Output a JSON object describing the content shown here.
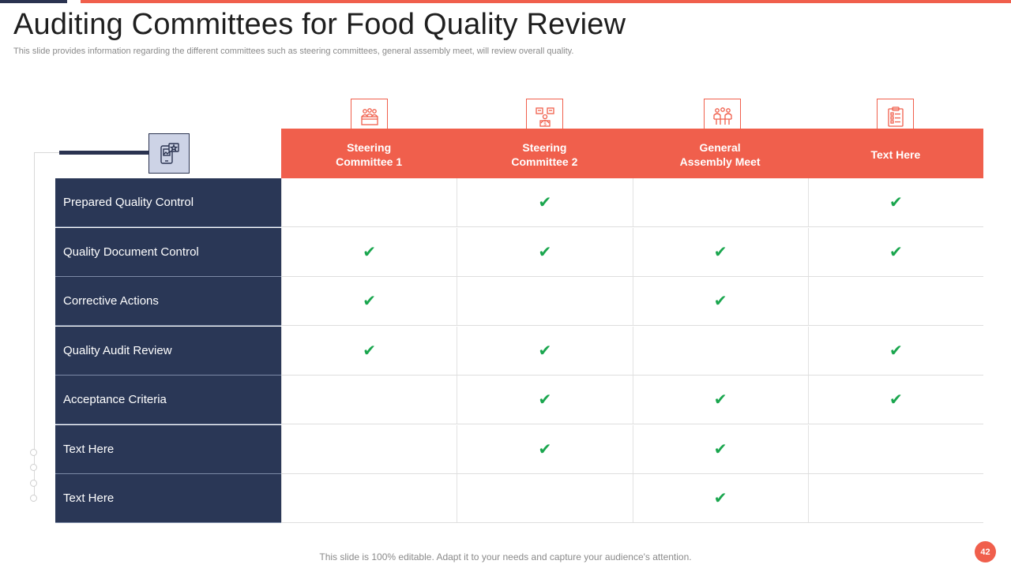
{
  "slide": {
    "title": "Auditing Committees for Food Quality Review",
    "subtitle": "This slide provides information regarding the different committees such as steering committees, general assembly meet, will review overall quality.",
    "footer": "This slide is 100% editable. Adapt it to your needs and capture your audience's attention.",
    "page_number": "42"
  },
  "colors": {
    "accent": "#f05f4c",
    "navy": "#2a3756",
    "check": "#1aa64e"
  },
  "table": {
    "columns": [
      {
        "label": "Steering\nCommittee 1",
        "icon": "committee-meeting-icon"
      },
      {
        "label": "Steering\nCommittee 2",
        "icon": "finance-committee-icon"
      },
      {
        "label": "General\nAssembly Meet",
        "icon": "assembly-meeting-icon"
      },
      {
        "label": "Text Here",
        "icon": "checklist-icon"
      }
    ],
    "check_symbol": "✔",
    "rows": [
      {
        "label": "Prepared Quality Control",
        "checks": [
          false,
          true,
          false,
          true
        ]
      },
      {
        "label": "Quality Document Control",
        "checks": [
          true,
          true,
          true,
          true
        ]
      },
      {
        "label": "Corrective Actions",
        "checks": [
          true,
          false,
          true,
          false
        ]
      },
      {
        "label": "Quality Audit Review",
        "checks": [
          true,
          true,
          false,
          true
        ]
      },
      {
        "label": "Acceptance Criteria",
        "checks": [
          false,
          true,
          true,
          true
        ]
      },
      {
        "label": "Text Here",
        "checks": [
          false,
          true,
          true,
          false
        ]
      },
      {
        "label": "Text Here",
        "checks": [
          false,
          false,
          true,
          false
        ]
      }
    ]
  }
}
